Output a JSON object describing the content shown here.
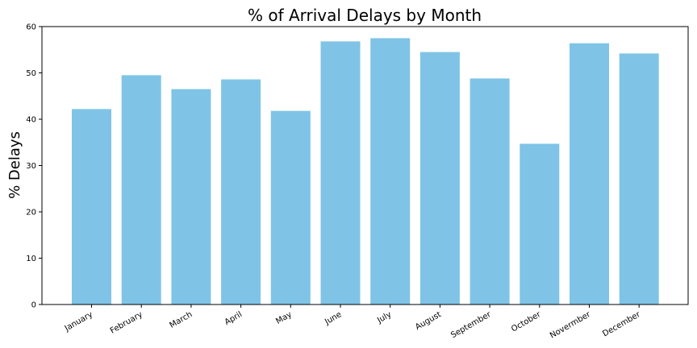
{
  "chart_data": {
    "type": "bar",
    "title": "% of Arrival Delays by Month",
    "xlabel": "",
    "ylabel": "% Delays",
    "categories": [
      "January",
      "February",
      "March",
      "April",
      "May",
      "June",
      "July",
      "August",
      "September",
      "October",
      "Novermber",
      "December"
    ],
    "values": [
      42.2,
      49.5,
      46.5,
      48.6,
      41.8,
      56.8,
      57.5,
      54.5,
      48.8,
      34.7,
      56.4,
      54.2
    ],
    "ylim": [
      0,
      60
    ],
    "yticks": [
      0,
      10,
      20,
      30,
      40,
      50,
      60
    ],
    "bar_color": "#7fc4e6",
    "grid": false,
    "legend": "none"
  }
}
